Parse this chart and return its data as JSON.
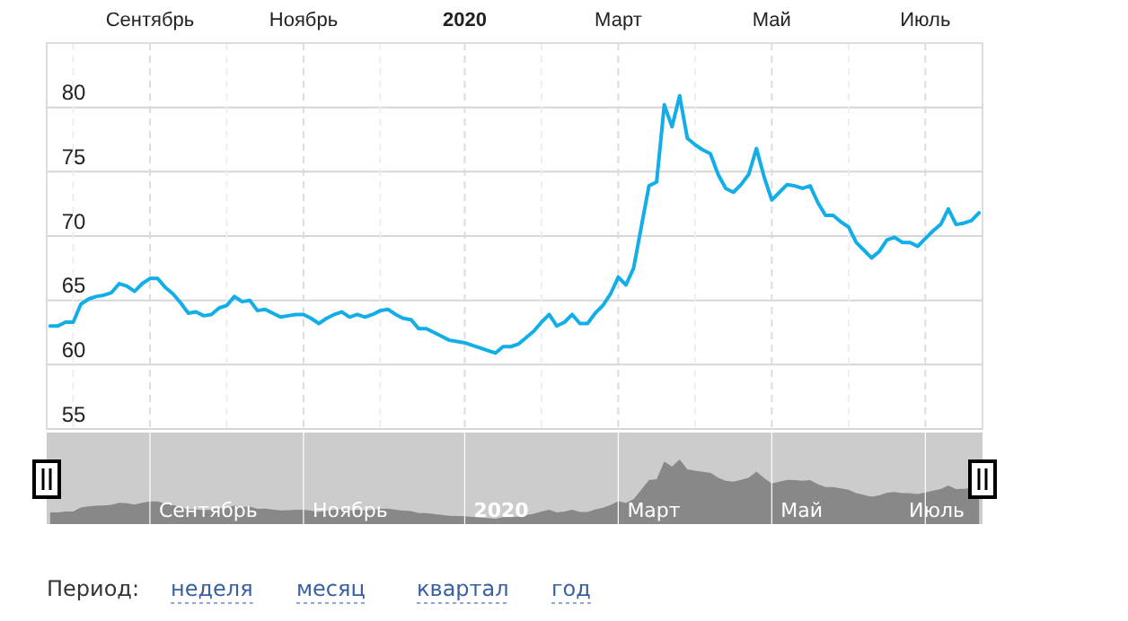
{
  "chart_data": {
    "type": "line",
    "categories": [
      null,
      null,
      null,
      null,
      null,
      null,
      null,
      null,
      null,
      null,
      null,
      null,
      null,
      "Сентябрь",
      null,
      null,
      null,
      null,
      null,
      null,
      null,
      null,
      null,
      null,
      null,
      null,
      null,
      null,
      null,
      null,
      null,
      null,
      null,
      "Ноябрь",
      null,
      null,
      null,
      null,
      null,
      null,
      null,
      null,
      null,
      null,
      null,
      null,
      null,
      null,
      null,
      null,
      null,
      null,
      null,
      null,
      "2020",
      null,
      null,
      null,
      null,
      null,
      null,
      null,
      null,
      null,
      null,
      null,
      null,
      null,
      null,
      null,
      null,
      null,
      null,
      null,
      "Март",
      null,
      null,
      null,
      null,
      null,
      null,
      null,
      null,
      null,
      null,
      null,
      null,
      null,
      null,
      null,
      null,
      null,
      null,
      null,
      "Май",
      null,
      null,
      null,
      null,
      null,
      null,
      null,
      null,
      null,
      null,
      null,
      null,
      null,
      null,
      null,
      null,
      null,
      null,
      null,
      "Июль",
      null,
      null,
      null,
      null,
      null,
      null,
      null
    ],
    "series": [
      {
        "color": "#12aee8",
        "values": [
          63.0,
          63.0,
          63.3,
          63.3,
          64.7,
          65.1,
          65.3,
          65.4,
          65.6,
          66.3,
          66.1,
          65.7,
          66.3,
          66.7,
          66.7,
          66.0,
          65.5,
          64.8,
          64.0,
          64.1,
          63.8,
          63.9,
          64.4,
          64.6,
          65.3,
          64.9,
          65.0,
          64.2,
          64.3,
          64.0,
          63.7,
          63.8,
          63.9,
          63.9,
          63.6,
          63.2,
          63.6,
          63.9,
          64.1,
          63.7,
          63.9,
          63.7,
          63.9,
          64.2,
          64.3,
          63.9,
          63.6,
          63.5,
          62.8,
          62.8,
          62.5,
          62.2,
          61.9,
          61.8,
          61.7,
          61.5,
          61.3,
          61.1,
          60.9,
          61.4,
          61.4,
          61.6,
          62.1,
          62.6,
          63.3,
          63.9,
          63.0,
          63.3,
          63.9,
          63.2,
          63.2,
          64.0,
          64.6,
          65.5,
          66.8,
          66.2,
          67.5,
          70.7,
          73.9,
          74.2,
          80.2,
          78.5,
          80.9,
          77.6,
          77.1,
          76.7,
          76.4,
          74.8,
          73.7,
          73.4,
          74.0,
          74.8,
          76.8,
          74.6,
          72.8,
          73.4,
          74.0,
          73.9,
          73.7,
          73.9,
          72.6,
          71.6,
          71.6,
          71.1,
          70.7,
          69.5,
          68.9,
          68.3,
          68.8,
          69.7,
          69.9,
          69.5,
          69.5,
          69.2,
          69.8,
          70.4,
          70.9,
          72.1,
          70.9,
          71.0,
          71.2,
          71.8
        ]
      }
    ],
    "ylim": [
      55,
      85
    ],
    "yticks": [
      55,
      60,
      65,
      70,
      75,
      80
    ],
    "grid": true,
    "line_style": "solid",
    "marker": "none",
    "annotations": [
      "Период:",
      "неделя",
      "месяц",
      "квартал",
      "год"
    ]
  }
}
